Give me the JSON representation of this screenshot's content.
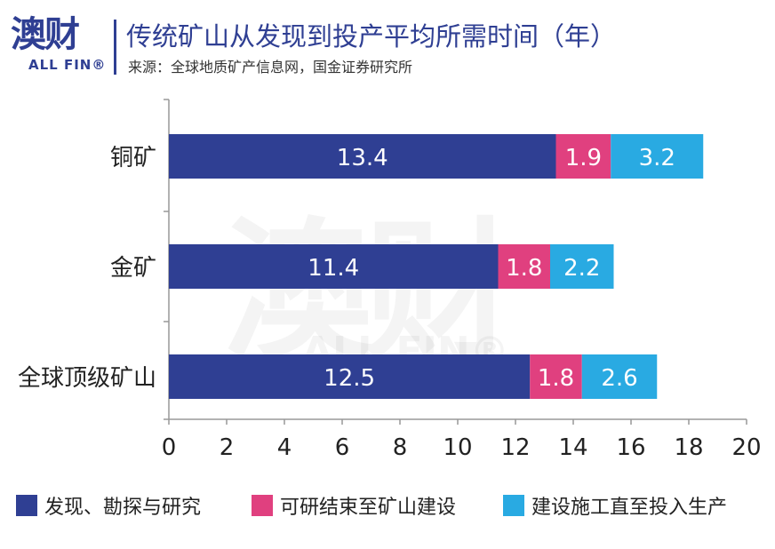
{
  "header": {
    "logo_text": "澳财",
    "logo_sub": "ALL FIN®",
    "title": "传统矿山从发现到投产平均所需时间（年）",
    "source": "来源：全球地质矿产信息网，国金证券研究所"
  },
  "colors": {
    "brand": "#2f3f93",
    "series1": "#2f3f93",
    "series2": "#e0407f",
    "series3": "#29aae2"
  },
  "chart_data": {
    "type": "bar",
    "orientation": "horizontal",
    "stacked": true,
    "categories": [
      "铜矿",
      "金矿",
      "全球顶级矿山"
    ],
    "series": [
      {
        "name": "发现、勘探与研究",
        "values": [
          13.4,
          11.4,
          12.5
        ]
      },
      {
        "name": "可研结束至矿山建设",
        "values": [
          1.9,
          1.8,
          1.8
        ]
      },
      {
        "name": "建设施工直至投入生产",
        "values": [
          3.2,
          2.2,
          2.6
        ]
      }
    ],
    "x_ticks": [
      "0",
      "2",
      "4",
      "6",
      "8",
      "10",
      "12",
      "14",
      "16",
      "18",
      "20"
    ],
    "xlim": [
      0,
      20
    ],
    "grid": false,
    "legend_position": "bottom"
  }
}
